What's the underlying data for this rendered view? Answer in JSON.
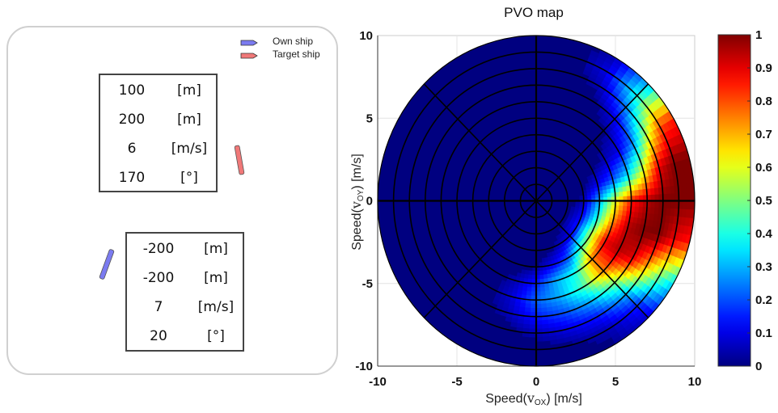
{
  "legend": {
    "own_ship": "Own ship",
    "target_ship": "Target ship",
    "own_color": "#7b7bf0",
    "target_color": "#f07878"
  },
  "target_table": [
    {
      "value": "100",
      "unit": "[m]"
    },
    {
      "value": "200",
      "unit": "[m]"
    },
    {
      "value": "6",
      "unit": "[m/s]"
    },
    {
      "value": "170",
      "unit": "[°]"
    }
  ],
  "own_table": [
    {
      "value": "-200",
      "unit": "[m]"
    },
    {
      "value": "-200",
      "unit": "[m]"
    },
    {
      "value": "7",
      "unit": "[m/s]"
    },
    {
      "value": "20",
      "unit": "[°]"
    }
  ],
  "chart_data": {
    "type": "heatmap",
    "title": "PVO map",
    "xlabel": "Speed(v_ox) [m/s]",
    "ylabel": "Speed(v_oy) [m/s]",
    "xlabel_main": "Speed(",
    "xlabel_sub": "v",
    "xlabel_subsub": "OX",
    "xlabel_tail": ") [m/s]",
    "ylabel_main": "Speed(",
    "ylabel_sub": "v",
    "ylabel_subsub": "OY",
    "ylabel_tail": ") [m/s]",
    "xlim": [
      -10,
      10
    ],
    "ylim": [
      -10,
      10
    ],
    "xticks": [
      "-10",
      "-5",
      "0",
      "5",
      "10"
    ],
    "yticks": [
      "10",
      "5",
      "0",
      "-5",
      "-10"
    ],
    "grid": true,
    "polar_rings": [
      1,
      2,
      3,
      4,
      5,
      6,
      7,
      8,
      9,
      10
    ],
    "polar_spokes_deg": [
      0,
      45,
      90,
      135,
      180,
      225,
      270,
      315
    ],
    "colorbar": {
      "range": [
        0,
        1
      ],
      "ticks": [
        "1",
        "0.9",
        "0.8",
        "0.7",
        "0.6",
        "0.5",
        "0.4",
        "0.3",
        "0.2",
        "0.1",
        "0"
      ],
      "colormap": "jet",
      "placement": "right"
    },
    "polar_samples": {
      "angles_deg": [
        -120,
        -105,
        -90,
        -75,
        -60,
        -45,
        -30,
        -15,
        0,
        15,
        30,
        45,
        60,
        75
      ],
      "radii": [
        0,
        1,
        2,
        3,
        4,
        5,
        6,
        7,
        8,
        9,
        10
      ],
      "values": [
        [
          0,
          0,
          0,
          0,
          0,
          0,
          0,
          0,
          0,
          0,
          0
        ],
        [
          0,
          0,
          0,
          0,
          0,
          0.05,
          0.08,
          0.05,
          0,
          0,
          0
        ],
        [
          0,
          0,
          0,
          0,
          0.02,
          0.15,
          0.22,
          0.15,
          0.05,
          0,
          0
        ],
        [
          0,
          0,
          0,
          0,
          0.1,
          0.3,
          0.3,
          0.2,
          0.1,
          0.02,
          0
        ],
        [
          0,
          0,
          0,
          0.05,
          0.2,
          0.4,
          0.45,
          0.3,
          0.15,
          0.05,
          0.02
        ],
        [
          0,
          0,
          0,
          0.1,
          0.45,
          0.75,
          0.75,
          0.5,
          0.3,
          0.15,
          0.08
        ],
        [
          0,
          0,
          0,
          0.15,
          0.55,
          0.9,
          0.95,
          0.9,
          0.7,
          0.5,
          0.35
        ],
        [
          0,
          0,
          0,
          0.1,
          0.4,
          0.75,
          0.95,
          1,
          1,
          0.9,
          0.85
        ],
        [
          0,
          0,
          0,
          0.05,
          0.3,
          0.6,
          0.85,
          0.95,
          1,
          1,
          1
        ],
        [
          0,
          0,
          0,
          0,
          0.1,
          0.2,
          0.35,
          0.6,
          0.9,
          1,
          1
        ],
        [
          0,
          0,
          0,
          0,
          0,
          0.05,
          0.1,
          0.25,
          0.55,
          0.8,
          0.85
        ],
        [
          0,
          0,
          0,
          0,
          0,
          0,
          0.02,
          0.1,
          0.25,
          0.4,
          0.3
        ],
        [
          0,
          0,
          0,
          0,
          0,
          0,
          0,
          0,
          0.05,
          0.1,
          0.05
        ],
        [
          0,
          0,
          0,
          0,
          0,
          0,
          0,
          0,
          0,
          0,
          0
        ]
      ]
    }
  }
}
